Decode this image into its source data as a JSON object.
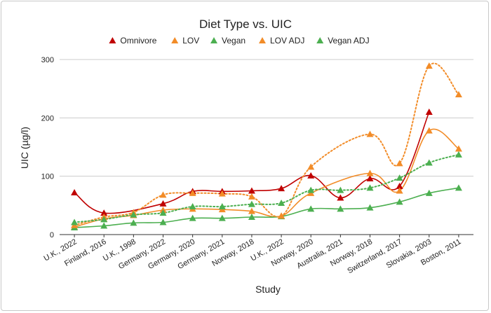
{
  "chart_data": {
    "type": "line",
    "title": "Diet Type vs. UIC",
    "xlabel": "Study",
    "ylabel": "UIC (µg/l)",
    "ylim": [
      0,
      300
    ],
    "yticks": [
      0,
      100,
      200,
      300
    ],
    "grid": "horizontal",
    "legend": "top",
    "categories": [
      "U.K., 2022",
      "Finland, 2016",
      "U.K., 1998",
      "Germany, 2022",
      "Germany, 2020",
      "Germany, 2021",
      "Norway, 2018",
      "U.K., 2022",
      "Norway, 2020",
      "Australia, 2021",
      "Norway, 2018",
      "Switzerland, 2017",
      "Slovakia, 2003",
      "Boston, 2011"
    ],
    "series": [
      {
        "name": "Omnivore",
        "color": "#c00000",
        "dashed": false,
        "values": [
          72,
          37,
          null,
          53,
          74,
          74,
          75,
          79,
          101,
          63,
          96,
          83,
          210,
          null
        ]
      },
      {
        "name": "LOV",
        "color": "#f28c28",
        "dashed": false,
        "values": [
          13,
          27,
          33,
          42,
          44,
          43,
          40,
          32,
          71,
          null,
          105,
          75,
          178,
          147
        ]
      },
      {
        "name": "Vegan",
        "color": "#4caf50",
        "dashed": false,
        "values": [
          12,
          15,
          20,
          21,
          28,
          28,
          30,
          31,
          44,
          44,
          46,
          56,
          71,
          80
        ]
      },
      {
        "name": "LOV ADJ",
        "color": "#f28c28",
        "dashed": true,
        "values": [
          16,
          30,
          38,
          68,
          71,
          70,
          65,
          32,
          116,
          null,
          172,
          122,
          289,
          240
        ]
      },
      {
        "name": "Vegan ADJ",
        "color": "#4caf50",
        "dashed": true,
        "values": [
          21,
          26,
          34,
          37,
          48,
          48,
          52,
          54,
          76,
          76,
          80,
          97,
          123,
          137
        ]
      }
    ]
  }
}
